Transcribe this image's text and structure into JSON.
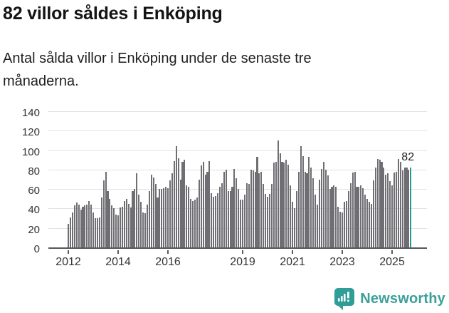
{
  "header": {
    "title": "82 villor såldes i Enköping",
    "subtitle": "Antal sålda villor i Enköping under de senaste tre månaderna."
  },
  "chart_data": {
    "type": "bar",
    "title": "82 villor såldes i Enköping",
    "subtitle": "Antal sålda villor i Enköping under de senaste tre månaderna.",
    "xlabel": "",
    "ylabel": "",
    "ylim": [
      0,
      140
    ],
    "y_ticks": [
      0,
      20,
      40,
      60,
      80,
      100,
      120,
      140
    ],
    "grid": "horizontal",
    "legend_position": "none",
    "frequency": "monthly",
    "period_start": "2012-01",
    "period_end": "2025-10",
    "x_tick_labels": [
      "2012",
      "2014",
      "2016",
      "2019",
      "2021",
      "2023",
      "2025"
    ],
    "x_tick_month_indices": [
      0,
      24,
      48,
      84,
      108,
      132,
      156
    ],
    "values": [
      24,
      31,
      36,
      43,
      46,
      44,
      39,
      42,
      43,
      44,
      48,
      44,
      36,
      30,
      30,
      31,
      51,
      69,
      78,
      58,
      50,
      43,
      40,
      34,
      33,
      41,
      42,
      48,
      50,
      45,
      41,
      58,
      60,
      76,
      54,
      47,
      36,
      35,
      44,
      58,
      75,
      72,
      65,
      51,
      60,
      60,
      61,
      62,
      61,
      69,
      76,
      89,
      104,
      92,
      70,
      88,
      90,
      64,
      62,
      50,
      48,
      49,
      51,
      70,
      84,
      88,
      75,
      78,
      89,
      56,
      52,
      53,
      56,
      62,
      66,
      78,
      80,
      58,
      58,
      62,
      81,
      71,
      60,
      49,
      49,
      54,
      66,
      65,
      80,
      79,
      78,
      93,
      76,
      78,
      65,
      55,
      52,
      55,
      65,
      87,
      88,
      110,
      97,
      88,
      87,
      90,
      85,
      64,
      47,
      40,
      58,
      78,
      104,
      94,
      78,
      76,
      93,
      82,
      71,
      54,
      44,
      70,
      81,
      88,
      80,
      74,
      60,
      62,
      64,
      62,
      42,
      37,
      36,
      47,
      48,
      58,
      66,
      77,
      78,
      62,
      62,
      64,
      61,
      54,
      50,
      47,
      45,
      69,
      82,
      91,
      90,
      88,
      82,
      75,
      76,
      68,
      64,
      77,
      78,
      91,
      88,
      79,
      82,
      82,
      80,
      82
    ],
    "highlight_last": true,
    "last_value_label": "82",
    "colors": {
      "bar": "#6e6e73",
      "highlight": "#1f9a94",
      "grid": "#e2e2e2",
      "axis": "#58585a",
      "tick_text": "#333333"
    }
  },
  "footer": {
    "brand": "Newsworthy",
    "brand_color": "#3aa099",
    "logo_icon": "bar-chart-speech-bubble-icon"
  }
}
